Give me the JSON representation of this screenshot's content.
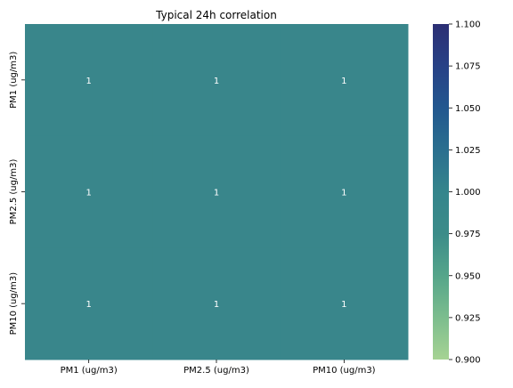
{
  "chart_data": {
    "type": "heatmap",
    "title": "Typical 24h correlation",
    "x_categories": [
      "PM1 (ug/m3)",
      "PM2.5 (ug/m3)",
      "PM10 (ug/m3)"
    ],
    "y_categories": [
      "PM1 (ug/m3)",
      "PM2.5 (ug/m3)",
      "PM10 (ug/m3)"
    ],
    "values": [
      [
        1,
        1,
        1
      ],
      [
        1,
        1,
        1
      ],
      [
        1,
        1,
        1
      ]
    ],
    "cell_labels": [
      [
        "1",
        "1",
        "1"
      ],
      [
        "1",
        "1",
        "1"
      ],
      [
        "1",
        "1",
        "1"
      ]
    ],
    "colorbar": {
      "range": [
        0.9,
        1.1
      ],
      "ticks": [
        "0.900",
        "0.925",
        "0.950",
        "0.975",
        "1.000",
        "1.025",
        "1.050",
        "1.075",
        "1.100"
      ],
      "colormap": "crest",
      "colors": [
        "#a6d393",
        "#7cbd8e",
        "#55a58a",
        "#3b8c89",
        "#35858c",
        "#2a6f8f",
        "#22578f",
        "#274186",
        "#2c2f74"
      ]
    },
    "cell_color": "#39868b",
    "annotation_color": "#ffffff",
    "grid": false,
    "legend": "colorbar-right"
  }
}
